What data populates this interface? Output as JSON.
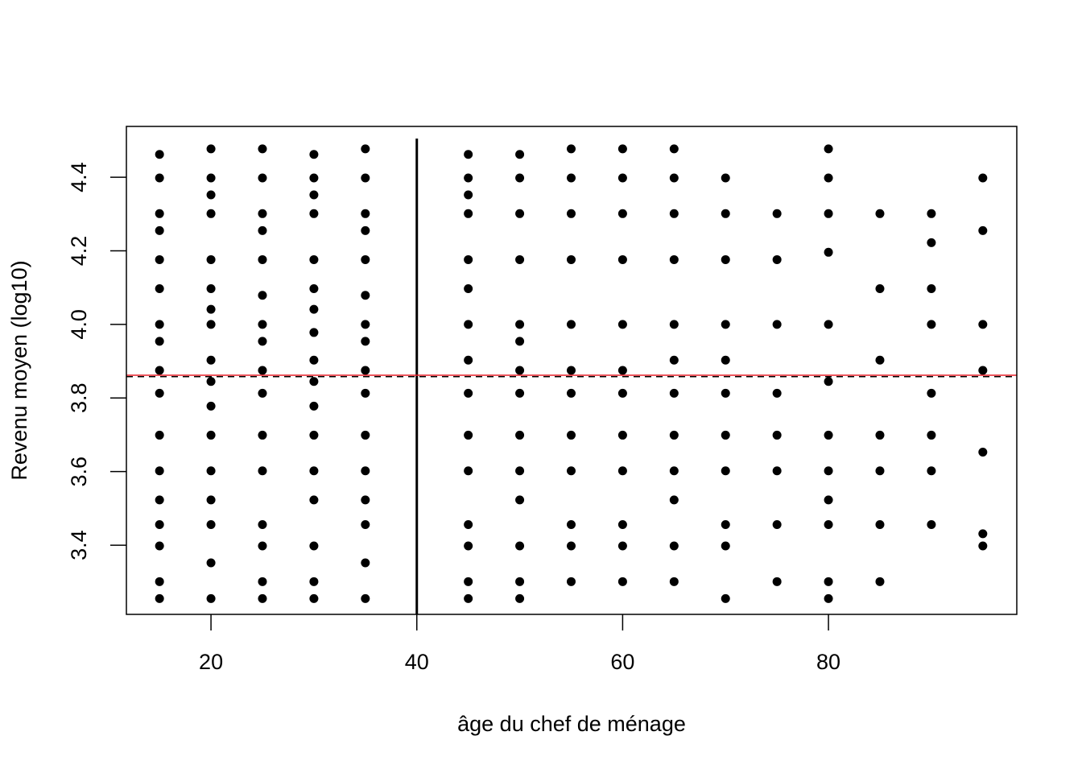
{
  "chart_data": {
    "type": "scatter",
    "xlabel": "âge du chef de ménage",
    "ylabel": "Revenu moyen (log10)",
    "color": "#000000",
    "xlim": [
      11.78,
      98.3
    ],
    "ylim": [
      3.212,
      4.538
    ],
    "xticks": [
      20,
      40,
      60,
      80
    ],
    "yticks": [
      3.4,
      3.6,
      3.8,
      {
        "value": 4,
        "label": "4.0"
      },
      4.2,
      4.4
    ],
    "hlines": [
      {
        "value": 3.862,
        "color": "#e8202a",
        "dash": false
      },
      {
        "value": 3.858,
        "color": "#000000",
        "dash": true
      }
    ],
    "vline": {
      "x": 40,
      "ylim": [
        3.212,
        4.505
      ],
      "color": "#000000"
    },
    "x": [
      15,
      15,
      15,
      15,
      15,
      15,
      15,
      15,
      15,
      15,
      15,
      15,
      15,
      15,
      15,
      15,
      15,
      20,
      20,
      20,
      20,
      20,
      20,
      20,
      20,
      20,
      20,
      20,
      20,
      20,
      20,
      20,
      20,
      20,
      25,
      25,
      25,
      25,
      25,
      25,
      25,
      25,
      25,
      25,
      25,
      25,
      25,
      25,
      25,
      25,
      30,
      30,
      30,
      30,
      30,
      30,
      30,
      30,
      30,
      30,
      30,
      30,
      30,
      30,
      30,
      30,
      30,
      35,
      35,
      35,
      35,
      35,
      35,
      35,
      35,
      35,
      35,
      35,
      35,
      35,
      35,
      35,
      35,
      45,
      45,
      45,
      45,
      45,
      45,
      45,
      45,
      45,
      45,
      45,
      45,
      45,
      45,
      45,
      50,
      50,
      50,
      50,
      50,
      50,
      50,
      50,
      50,
      50,
      50,
      50,
      50,
      50,
      55,
      55,
      55,
      55,
      55,
      55,
      55,
      55,
      55,
      55,
      55,
      55,
      60,
      60,
      60,
      60,
      60,
      60,
      60,
      60,
      60,
      60,
      60,
      60,
      65,
      65,
      65,
      65,
      65,
      65,
      65,
      65,
      65,
      65,
      65,
      65,
      70,
      70,
      70,
      70,
      70,
      70,
      70,
      70,
      70,
      70,
      70,
      75,
      75,
      75,
      75,
      75,
      75,
      75,
      75,
      80,
      80,
      80,
      80,
      80,
      80,
      80,
      80,
      80,
      80,
      80,
      80,
      85,
      85,
      85,
      85,
      85,
      85,
      85,
      90,
      90,
      90,
      90,
      90,
      90,
      90,
      90,
      95,
      95,
      95,
      95,
      95,
      95,
      95
    ],
    "values": [
      3.255,
      3.301,
      3.398,
      3.456,
      3.523,
      3.602,
      3.699,
      3.813,
      3.875,
      3.954,
      4.0,
      4.097,
      4.176,
      4.255,
      4.301,
      4.398,
      4.462,
      3.255,
      3.352,
      3.456,
      3.523,
      3.602,
      3.699,
      3.778,
      3.845,
      3.903,
      4.0,
      4.041,
      4.097,
      4.176,
      4.301,
      4.352,
      4.398,
      4.477,
      3.255,
      3.301,
      3.398,
      3.456,
      3.602,
      3.699,
      3.813,
      3.875,
      3.954,
      4.0,
      4.079,
      4.176,
      4.255,
      4.301,
      4.398,
      4.477,
      3.255,
      3.301,
      3.398,
      3.523,
      3.602,
      3.699,
      3.778,
      3.845,
      3.903,
      3.978,
      4.041,
      4.097,
      4.176,
      4.301,
      4.352,
      4.398,
      4.462,
      3.255,
      3.352,
      3.456,
      3.523,
      3.602,
      3.699,
      3.813,
      3.875,
      3.954,
      4.0,
      4.079,
      4.176,
      4.255,
      4.301,
      4.398,
      4.477,
      3.255,
      3.301,
      3.398,
      3.456,
      3.602,
      3.699,
      3.813,
      3.903,
      4.0,
      4.097,
      4.176,
      4.301,
      4.352,
      4.398,
      4.462,
      3.255,
      3.301,
      3.398,
      3.523,
      3.602,
      3.699,
      3.813,
      3.875,
      3.954,
      4.0,
      4.176,
      4.301,
      4.398,
      4.462,
      3.301,
      3.398,
      3.456,
      3.602,
      3.699,
      3.813,
      3.875,
      4.0,
      4.176,
      4.301,
      4.398,
      4.477,
      3.301,
      3.398,
      3.456,
      3.602,
      3.699,
      3.813,
      3.875,
      4.0,
      4.176,
      4.301,
      4.398,
      4.477,
      3.301,
      3.398,
      3.523,
      3.602,
      3.699,
      3.813,
      3.903,
      4.0,
      4.176,
      4.301,
      4.398,
      4.477,
      3.255,
      3.398,
      3.456,
      3.602,
      3.699,
      3.813,
      3.903,
      4.0,
      4.176,
      4.301,
      4.398,
      3.301,
      3.456,
      3.602,
      3.699,
      3.813,
      4.0,
      4.176,
      4.301,
      3.255,
      3.301,
      3.456,
      3.523,
      3.602,
      3.699,
      3.845,
      4.0,
      4.196,
      4.301,
      4.398,
      4.477,
      3.301,
      3.456,
      3.602,
      3.699,
      3.903,
      4.097,
      4.301,
      3.456,
      3.602,
      3.699,
      3.813,
      4.0,
      4.097,
      4.222,
      4.301,
      3.398,
      3.431,
      3.653,
      3.875,
      4.0,
      4.255,
      4.398
    ]
  }
}
